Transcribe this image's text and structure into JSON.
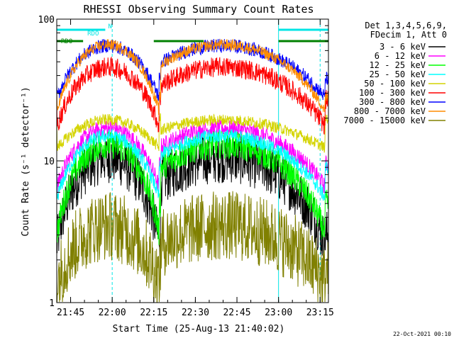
{
  "chart_data": {
    "type": "line",
    "title": "RHESSI Observing Summary Count Rates",
    "xlabel": "Start Time (25-Aug-13 21:40:02)",
    "ylabel": "Count Rate (s⁻¹ detector⁻¹)",
    "yscale": "log",
    "ylim": [
      1,
      100
    ],
    "xlim_minutes": [
      0,
      98
    ],
    "x_ticks": [
      {
        "t": 5,
        "label": "21:45"
      },
      {
        "t": 20,
        "label": "22:00"
      },
      {
        "t": 35,
        "label": "22:15"
      },
      {
        "t": 50,
        "label": "22:30"
      },
      {
        "t": 65,
        "label": "22:45"
      },
      {
        "t": 80,
        "label": "23:00"
      },
      {
        "t": 95,
        "label": "23:15"
      }
    ],
    "y_ticks": [
      {
        "v": 1,
        "label": "1"
      },
      {
        "v": 10,
        "label": "10"
      },
      {
        "v": 100,
        "label": "100"
      }
    ],
    "legend_header": [
      "Det 1,3,4,5,6,9,",
      "FDecim 1, Att 0"
    ],
    "series": [
      {
        "name": "3 - 6 keV",
        "color": "#000000",
        "base": 3,
        "peak": 10.5,
        "orb": 2.2,
        "noise": 0.18
      },
      {
        "name": "6 - 12 keV",
        "color": "#ff00ff",
        "base": 9.5,
        "peak": 17,
        "orb": 6,
        "noise": 0.06
      },
      {
        "name": "12 - 25 keV",
        "color": "#00ff00",
        "base": 5,
        "peak": 13,
        "orb": 2.5,
        "noise": 0.1
      },
      {
        "name": "25 - 50 keV",
        "color": "#00ffff",
        "base": 9,
        "peak": 15,
        "orb": 5,
        "noise": 0.05
      },
      {
        "name": "50 - 100 keV",
        "color": "#d4d400",
        "base": 20,
        "peak": 19.5,
        "orb": 12,
        "noise": 0.04
      },
      {
        "name": "100 - 300 keV",
        "color": "#ff0000",
        "base": 27,
        "peak": 46,
        "orb": 16,
        "noise": 0.07
      },
      {
        "name": "300 - 800 keV",
        "color": "#0000ff",
        "base": 38,
        "peak": 65,
        "orb": 26,
        "noise": 0.05
      },
      {
        "name": "800 - 7000 keV",
        "color": "#ff8c00",
        "base": 28,
        "peak": 66,
        "orb": 20,
        "noise": 0.04
      },
      {
        "name": "7000 - 15000 keV",
        "color": "#808000",
        "base": 1.6,
        "peak": 3.5,
        "orb": 1.3,
        "noise": 0.25
      }
    ],
    "saa_flags": [
      {
        "label": "N",
        "color": "#00e5e5",
        "segments": [
          [
            0,
            17.5
          ],
          [
            80,
            98
          ]
        ]
      },
      {
        "label": "RDO",
        "color": "#008000",
        "segments": [
          [
            0,
            9.5
          ],
          [
            35,
            53
          ],
          [
            80,
            98
          ]
        ]
      }
    ],
    "footer_date": "22-Oct-2021 00:10",
    "colors": {
      "background": "#ffffff",
      "axes": "#000000",
      "dashed": "#00e5e5"
    }
  }
}
